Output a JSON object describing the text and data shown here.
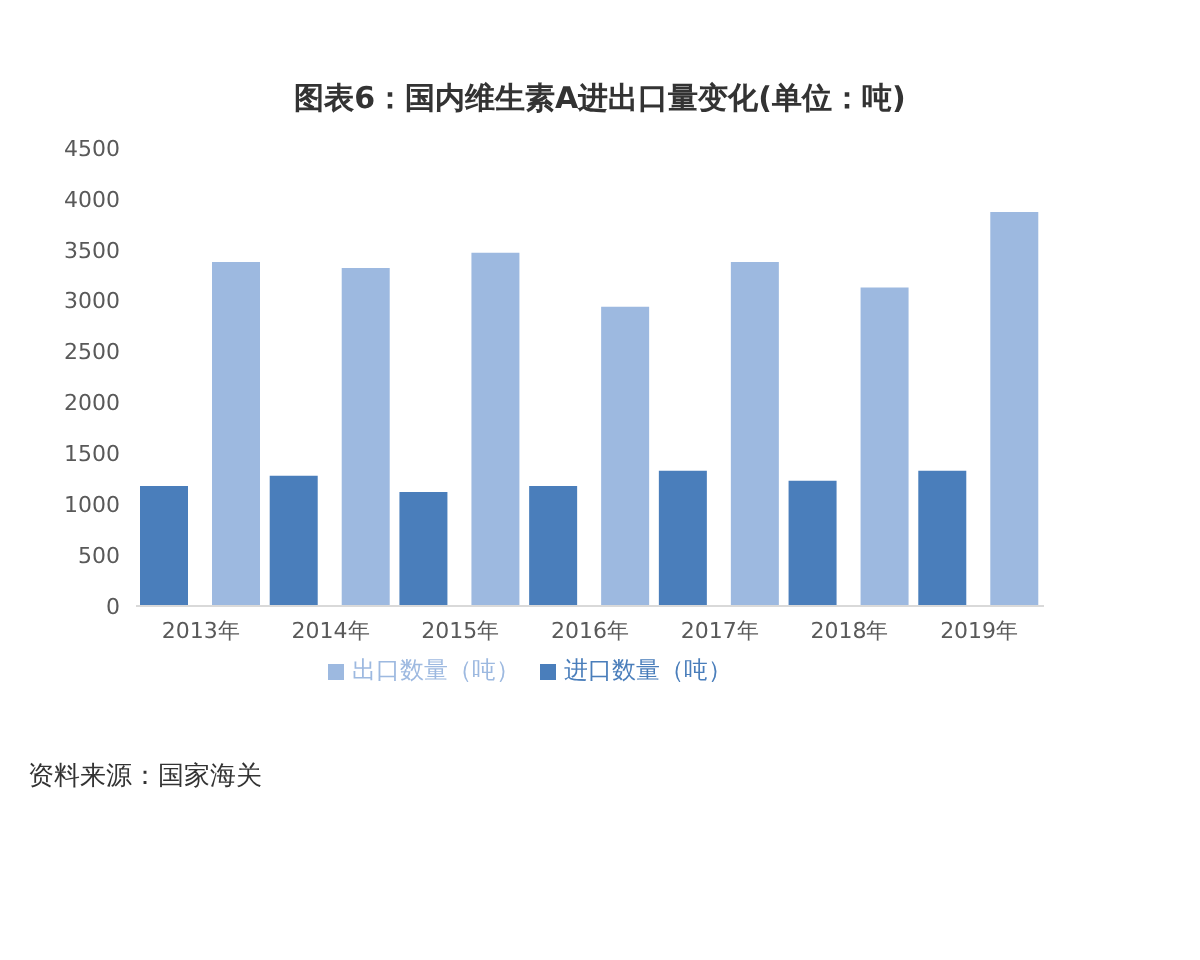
{
  "chart_data": {
    "type": "bar",
    "title": "图表6：国内维生素A进出口量变化(单位：吨)",
    "categories": [
      "2013年",
      "2014年",
      "2015年",
      "2016年",
      "2017年",
      "2018年",
      "2019年"
    ],
    "series": [
      {
        "name": "进口数量（吨）",
        "color": "#4a7ebb",
        "values": [
          1180,
          1280,
          1120,
          1180,
          1330,
          1230,
          1330
        ]
      },
      {
        "name": "出口数量（吨）",
        "color": "#9db9e0",
        "values": [
          3380,
          3320,
          3470,
          2940,
          3380,
          3130,
          3870
        ]
      }
    ],
    "ylim": [
      0,
      4500
    ],
    "yticks": [
      0,
      500,
      1000,
      1500,
      2000,
      2500,
      3000,
      3500,
      4000,
      4500
    ],
    "grid": false,
    "legend": "bottom",
    "annotations": [
      "资料来源：国家海关"
    ]
  }
}
